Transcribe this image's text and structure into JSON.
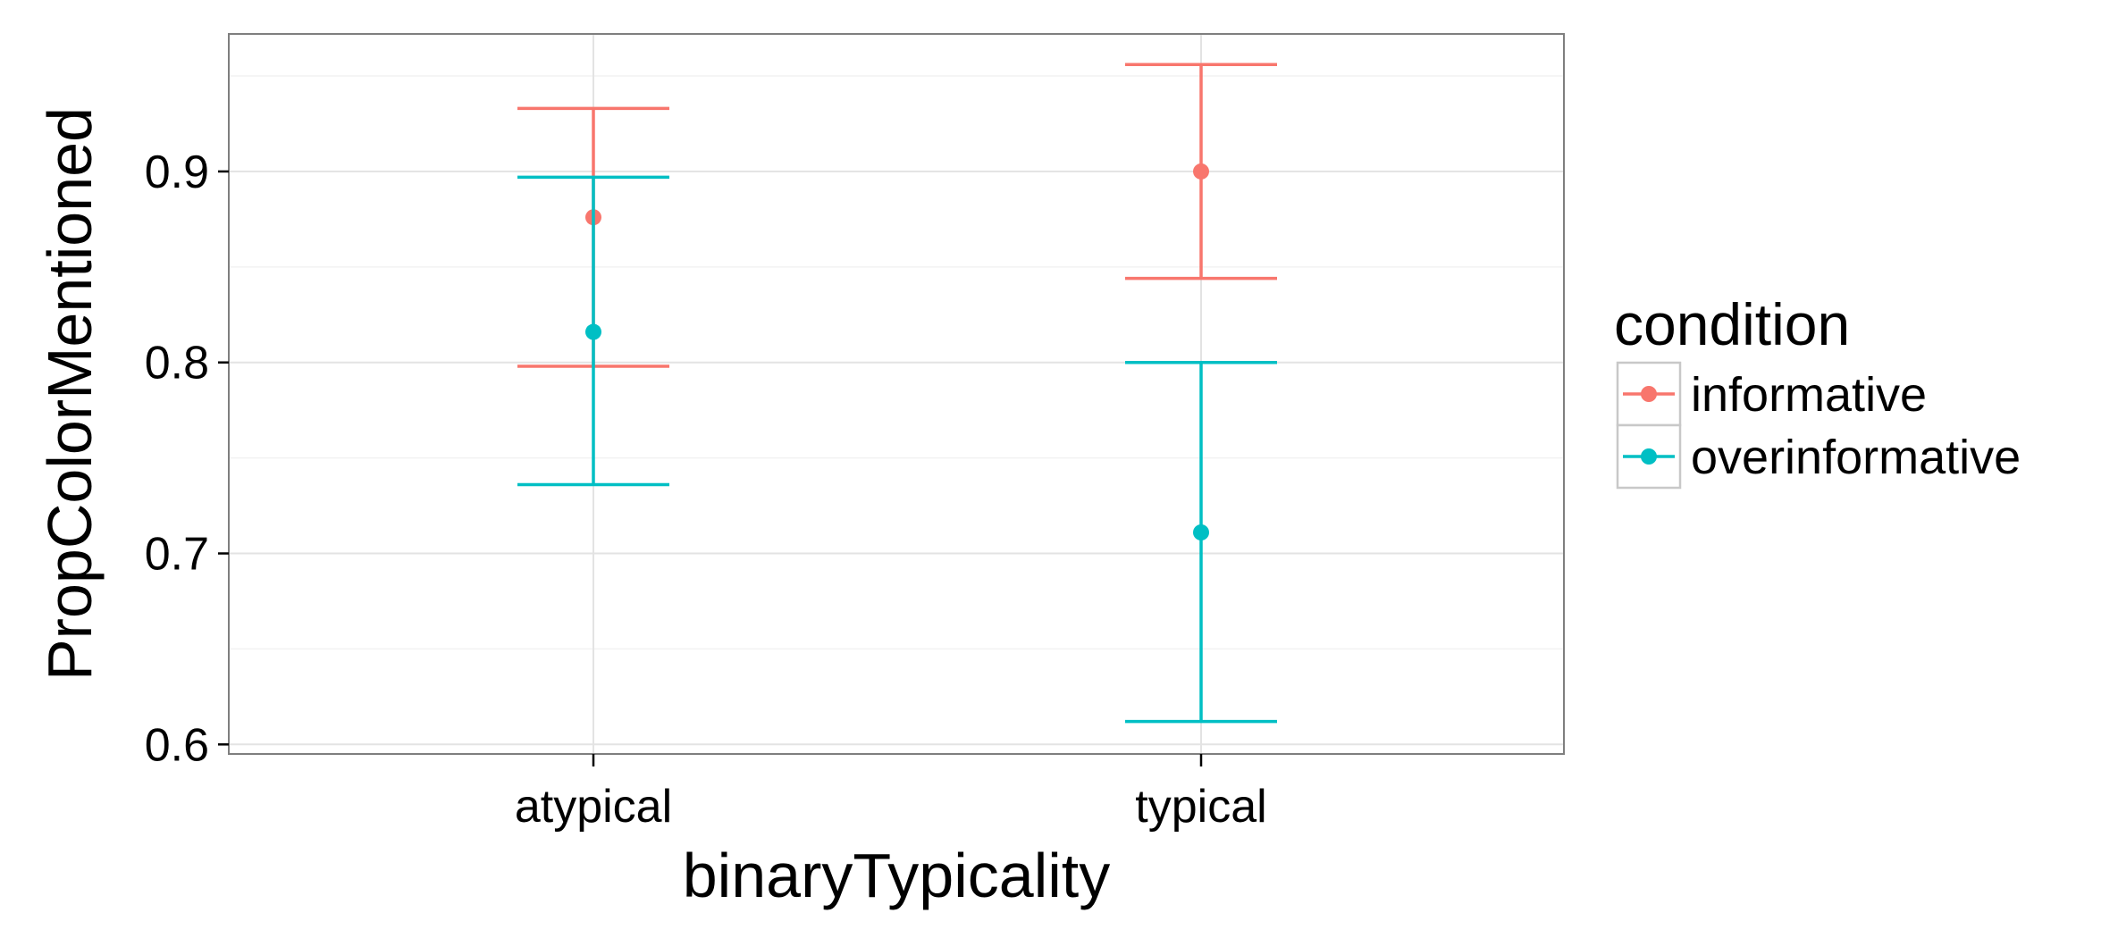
{
  "chart_data": {
    "type": "scatter",
    "subtype": "point-with-errorbars",
    "xlabel": "binaryTypicality",
    "ylabel": "PropColorMentioned",
    "categories": [
      "atypical",
      "typical"
    ],
    "ylim": [
      0.595,
      0.972
    ],
    "yticks": [
      0.6,
      0.7,
      0.8,
      0.9
    ],
    "ytick_labels": [
      "0.6",
      "0.7",
      "0.8",
      "0.9"
    ],
    "grid": true,
    "legend": {
      "title": "condition",
      "position": "right"
    },
    "series": [
      {
        "name": "informative",
        "color": "#F8766D",
        "values": [
          0.876,
          0.9
        ],
        "lower": [
          0.798,
          0.844
        ],
        "upper": [
          0.933,
          0.956
        ]
      },
      {
        "name": "overinformative",
        "color": "#00BFC4",
        "values": [
          0.816,
          0.711
        ],
        "lower": [
          0.736,
          0.612
        ],
        "upper": [
          0.897,
          0.8
        ]
      }
    ]
  }
}
